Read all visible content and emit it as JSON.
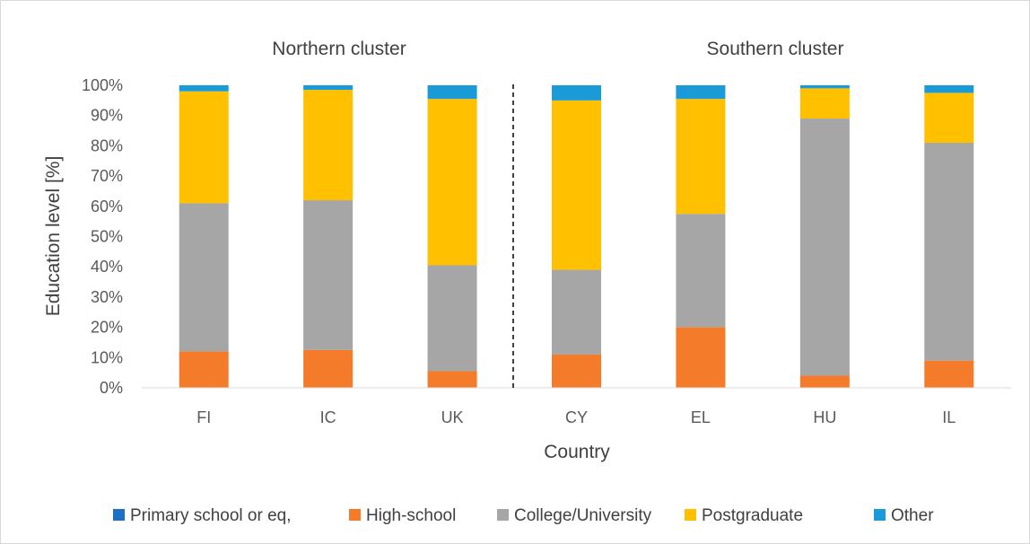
{
  "chart_data": {
    "type": "bar",
    "stacked": true,
    "percent": true,
    "categories": [
      "FI",
      "IC",
      "UK",
      "CY",
      "EL",
      "HU",
      "IL"
    ],
    "series": [
      {
        "name": "Primary school or eq,",
        "color": "#1f6fc5",
        "values": [
          0,
          0,
          0,
          0,
          0,
          0,
          0
        ]
      },
      {
        "name": "High-school",
        "color": "#f47b2a",
        "values": [
          12,
          12.5,
          5.5,
          11,
          20,
          4,
          9
        ]
      },
      {
        "name": "College/University",
        "color": "#a6a6a6",
        "values": [
          49,
          49.5,
          35,
          28,
          37.5,
          85,
          72
        ]
      },
      {
        "name": "Postgraduate",
        "color": "#ffc000",
        "values": [
          37,
          36.5,
          55,
          56,
          38,
          10,
          16.5
        ]
      },
      {
        "name": "Other",
        "color": "#1a9bd7",
        "values": [
          2,
          1.5,
          4.5,
          5,
          4.5,
          1,
          2.5
        ]
      }
    ],
    "xlabel": "Country",
    "ylabel": "Education level [%]",
    "yticks": [
      "0%",
      "10%",
      "20%",
      "30%",
      "40%",
      "50%",
      "60%",
      "70%",
      "80%",
      "90%",
      "100%"
    ],
    "ylim": [
      0,
      100
    ],
    "grid": false,
    "legend_position": "bottom",
    "clusters": [
      {
        "label": "Northern cluster",
        "categories": [
          "FI",
          "IC",
          "UK"
        ]
      },
      {
        "label": "Southern cluster",
        "categories": [
          "CY",
          "EL",
          "HU",
          "IL"
        ]
      }
    ],
    "divider_between": [
      "UK",
      "CY"
    ]
  }
}
